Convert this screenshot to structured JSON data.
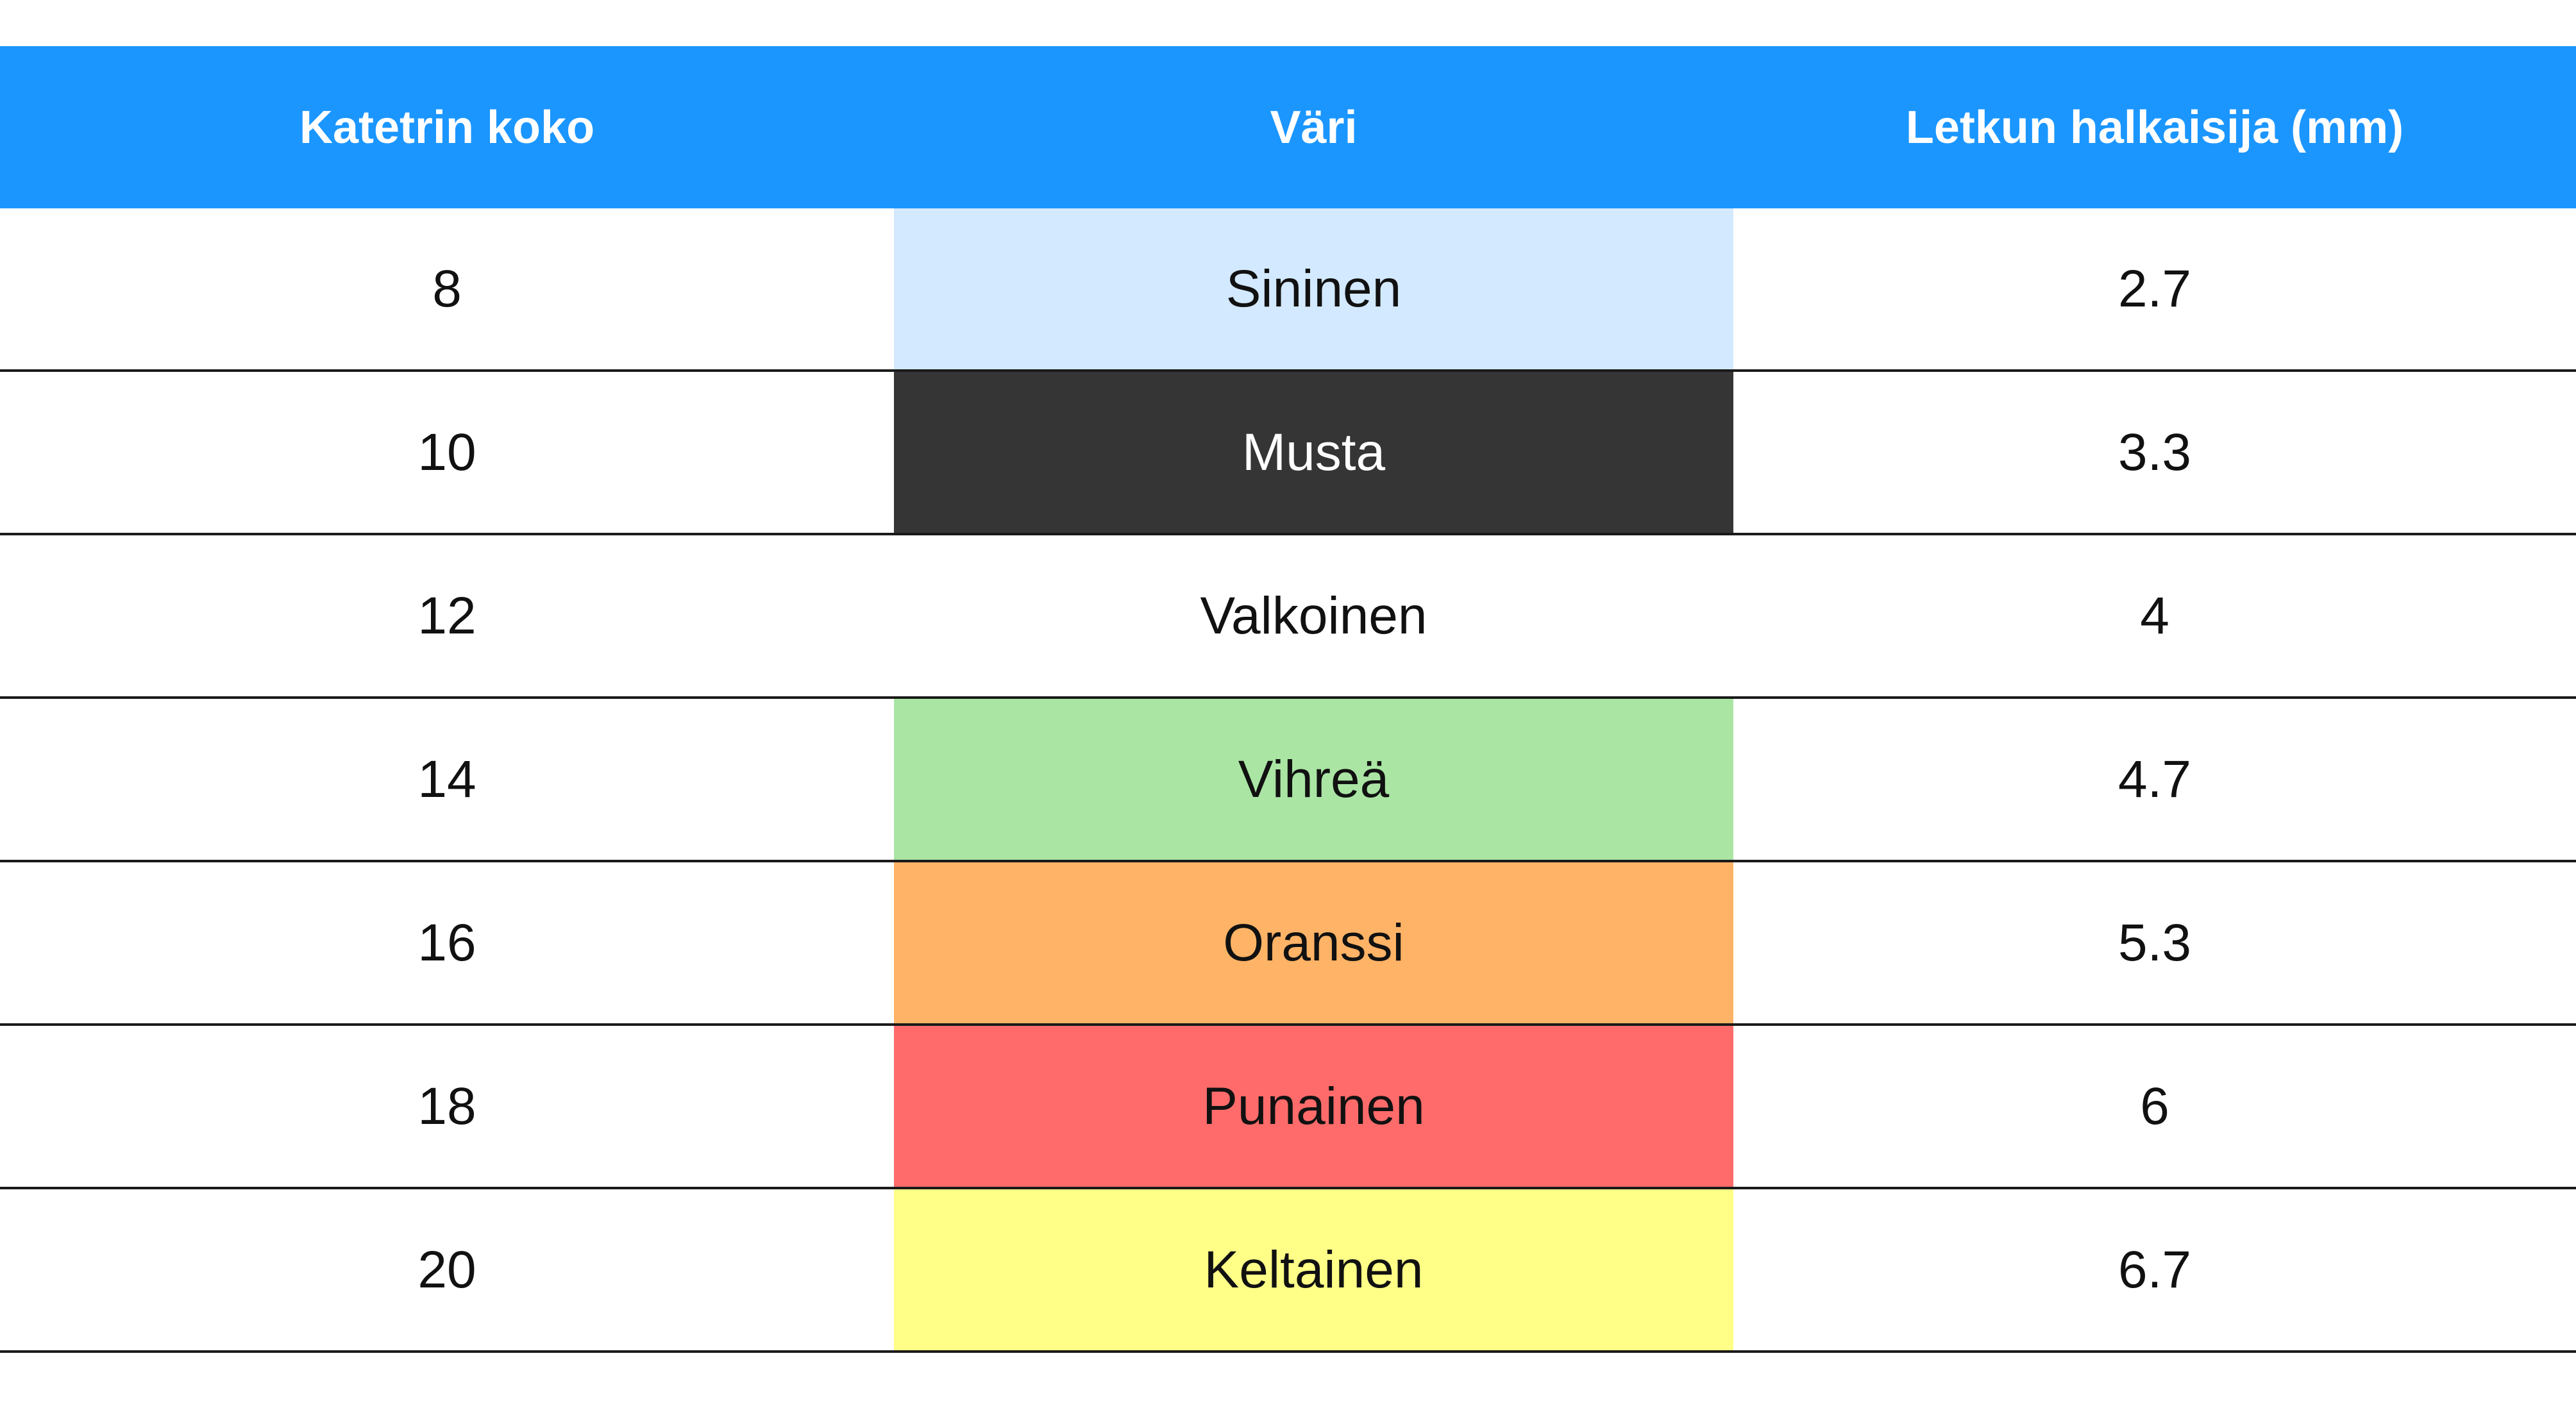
{
  "table": {
    "headers": [
      "Katetrin koko",
      "Väri",
      "Letkun halkaisija (mm)"
    ],
    "header_background": "#1b96ff",
    "rows": [
      {
        "size": "8",
        "color": "Sininen",
        "diameter": "2.7",
        "swatch": "#d3e9ff",
        "text_color": "#111111"
      },
      {
        "size": "10",
        "color": "Musta",
        "diameter": "3.3",
        "swatch": "#353535",
        "text_color": "#ffffff"
      },
      {
        "size": "12",
        "color": "Valkoinen",
        "diameter": "4",
        "swatch": "#ffffff",
        "text_color": "#111111"
      },
      {
        "size": "14",
        "color": "Vihreä",
        "diameter": "4.7",
        "swatch": "#aae5a4",
        "text_color": "#111111"
      },
      {
        "size": "16",
        "color": "Oranssi",
        "diameter": "5.3",
        "swatch": "#ffb366",
        "text_color": "#111111"
      },
      {
        "size": "18",
        "color": "Punainen",
        "diameter": "6",
        "swatch": "#ff6b6b",
        "text_color": "#111111"
      },
      {
        "size": "20",
        "color": "Keltainen",
        "diameter": "6.7",
        "swatch": "#ffff88",
        "text_color": "#111111"
      }
    ]
  }
}
